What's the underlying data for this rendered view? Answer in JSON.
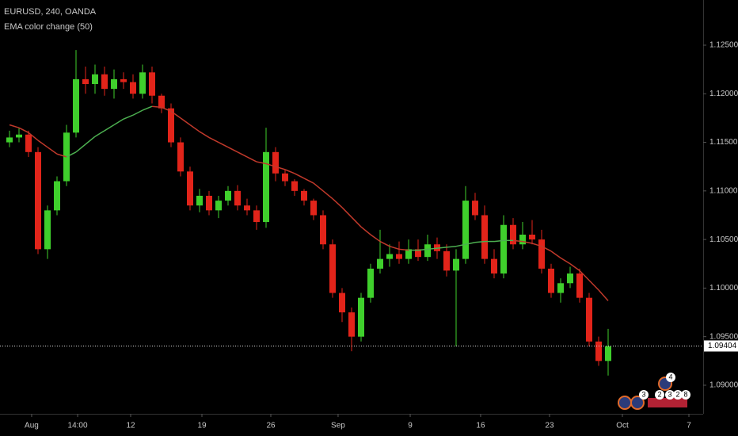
{
  "chart_data": {
    "type": "candlestick",
    "title": "EURUSD, 240, OANDA",
    "indicator": "EMA color change (50)",
    "up_color": "#3fcf2c",
    "down_color": "#e2241a",
    "x": [
      1,
      2,
      3,
      4,
      5,
      6,
      7,
      8,
      9,
      10,
      11,
      12,
      13,
      14,
      15,
      16,
      17,
      18,
      19,
      20,
      21,
      22,
      23,
      24,
      25,
      26,
      27,
      28,
      29,
      30,
      31,
      32,
      33,
      34,
      35,
      36,
      37,
      38,
      39,
      40,
      41,
      42,
      43,
      44,
      45,
      46,
      47,
      48,
      49,
      50,
      51,
      52,
      53,
      54,
      55,
      56,
      57,
      58,
      59,
      60,
      61,
      62,
      63,
      64
    ],
    "open": [
      1.115,
      1.1155,
      1.1158,
      1.114,
      1.104,
      1.108,
      1.111,
      1.116,
      1.1215,
      1.121,
      1.122,
      1.1205,
      1.1215,
      1.1212,
      1.12,
      1.1222,
      1.1198,
      1.1185,
      1.115,
      1.112,
      1.1085,
      1.1095,
      1.108,
      1.109,
      1.11,
      1.1085,
      1.108,
      1.1068,
      1.114,
      1.1118,
      1.111,
      1.11,
      1.109,
      1.1075,
      1.1045,
      1.0995,
      1.0975,
      1.095,
      1.099,
      1.102,
      1.103,
      1.1035,
      1.103,
      1.104,
      1.1032,
      1.1045,
      1.1038,
      1.1018,
      1.103,
      1.109,
      1.1075,
      1.103,
      1.1015,
      1.1065,
      1.1045,
      1.1055,
      1.105,
      1.102,
      1.0995,
      1.1005,
      1.1015,
      1.099,
      1.0945,
      1.0925
    ],
    "high": [
      1.1162,
      1.1165,
      1.1162,
      1.1145,
      1.1085,
      1.1115,
      1.1168,
      1.1245,
      1.1228,
      1.123,
      1.1228,
      1.1225,
      1.1222,
      1.122,
      1.123,
      1.1228,
      1.12,
      1.119,
      1.1155,
      1.1125,
      1.1102,
      1.11,
      1.1095,
      1.1105,
      1.1106,
      1.1092,
      1.1085,
      1.1165,
      1.1145,
      1.1122,
      1.1112,
      1.1102,
      1.1092,
      1.108,
      1.105,
      1.1,
      1.098,
      1.0995,
      1.1025,
      1.106,
      1.1045,
      1.1048,
      1.105,
      1.105,
      1.1055,
      1.1052,
      1.1045,
      1.104,
      1.1105,
      1.1098,
      1.1085,
      1.104,
      1.1075,
      1.1072,
      1.1068,
      1.107,
      1.106,
      1.1025,
      1.101,
      1.1022,
      1.102,
      1.0995,
      1.095,
      1.0958
    ],
    "low": [
      1.1145,
      1.115,
      1.1135,
      1.1035,
      1.103,
      1.1075,
      1.1105,
      1.1155,
      1.12,
      1.12,
      1.1198,
      1.1195,
      1.1205,
      1.1195,
      1.1195,
      1.119,
      1.118,
      1.1145,
      1.1115,
      1.108,
      1.1078,
      1.1075,
      1.1072,
      1.1085,
      1.108,
      1.1075,
      1.106,
      1.1062,
      1.111,
      1.1105,
      1.1095,
      1.1085,
      1.107,
      1.104,
      1.099,
      1.0965,
      1.0935,
      1.0945,
      1.0985,
      1.1015,
      1.1022,
      1.1025,
      1.1025,
      1.1028,
      1.1028,
      1.103,
      1.1012,
      1.094,
      1.1025,
      1.107,
      1.1025,
      1.101,
      1.101,
      1.104,
      1.104,
      1.1045,
      1.1015,
      1.099,
      1.0985,
      1.1,
      1.0985,
      1.094,
      1.092,
      1.091
    ],
    "close": [
      1.1155,
      1.1158,
      1.114,
      1.104,
      1.108,
      1.111,
      1.116,
      1.1215,
      1.121,
      1.122,
      1.1205,
      1.1215,
      1.1212,
      1.12,
      1.1222,
      1.1198,
      1.1185,
      1.115,
      1.112,
      1.1085,
      1.1095,
      1.108,
      1.109,
      1.11,
      1.1085,
      1.108,
      1.1068,
      1.114,
      1.1118,
      1.111,
      1.11,
      1.109,
      1.1075,
      1.1045,
      1.0995,
      1.0975,
      1.095,
      1.099,
      1.102,
      1.103,
      1.1035,
      1.103,
      1.104,
      1.1032,
      1.1045,
      1.1038,
      1.1018,
      1.103,
      1.109,
      1.1075,
      1.103,
      1.1015,
      1.1065,
      1.1045,
      1.1055,
      1.105,
      1.102,
      1.0995,
      1.1005,
      1.1015,
      1.099,
      1.0945,
      1.0925,
      1.094
    ],
    "ema": {
      "rising_color": "#4caf50",
      "falling_color": "#c0392b",
      "values": [
        1.1168,
        1.1165,
        1.116,
        1.1152,
        1.1145,
        1.1138,
        1.1135,
        1.114,
        1.1148,
        1.1156,
        1.1162,
        1.1168,
        1.1174,
        1.1178,
        1.1183,
        1.1187,
        1.1186,
        1.1182,
        1.1175,
        1.1168,
        1.1161,
        1.1155,
        1.115,
        1.1145,
        1.114,
        1.1135,
        1.113,
        1.1128,
        1.1125,
        1.1122,
        1.1118,
        1.1113,
        1.1108,
        1.11,
        1.1092,
        1.1083,
        1.1073,
        1.1063,
        1.1055,
        1.1048,
        1.1043,
        1.104,
        1.1039,
        1.1039,
        1.104,
        1.1041,
        1.1042,
        1.1043,
        1.1045,
        1.1047,
        1.1048,
        1.1048,
        1.1049,
        1.1049,
        1.1048,
        1.1046,
        1.1043,
        1.1038,
        1.1031,
        1.1025,
        1.1018,
        1.1008,
        1.0998,
        1.0987
      ]
    },
    "last_price": 1.09404,
    "xlim": [
      0,
      74
    ],
    "xticks": [
      {
        "value": 3.33,
        "label": "Aug"
      },
      {
        "value": 8.17,
        "label": "14:00"
      },
      {
        "value": 13.75,
        "label": "12"
      },
      {
        "value": 21.25,
        "label": "19"
      },
      {
        "value": 28.5,
        "label": "26"
      },
      {
        "value": 35.58,
        "label": "Sep"
      },
      {
        "value": 43.17,
        "label": "9"
      },
      {
        "value": 50.58,
        "label": "16"
      },
      {
        "value": 57.83,
        "label": "23"
      },
      {
        "value": 65.5,
        "label": "Oct"
      },
      {
        "value": 72.5,
        "label": "7"
      }
    ],
    "ylim": [
      1.08706,
      1.12965
    ],
    "yticks": [
      {
        "value": 1.09,
        "label": "1.09000"
      },
      {
        "value": 1.095,
        "label": "1.09500"
      },
      {
        "value": 1.1,
        "label": "1.10000"
      },
      {
        "value": 1.105,
        "label": "1.10500"
      },
      {
        "value": 1.11,
        "label": "1.11000"
      },
      {
        "value": 1.115,
        "label": "1.11500"
      },
      {
        "value": 1.12,
        "label": "1.12000"
      },
      {
        "value": 1.125,
        "label": "1.12500"
      }
    ],
    "events": [
      "3",
      "2",
      "3",
      "2",
      "8",
      "4"
    ]
  }
}
